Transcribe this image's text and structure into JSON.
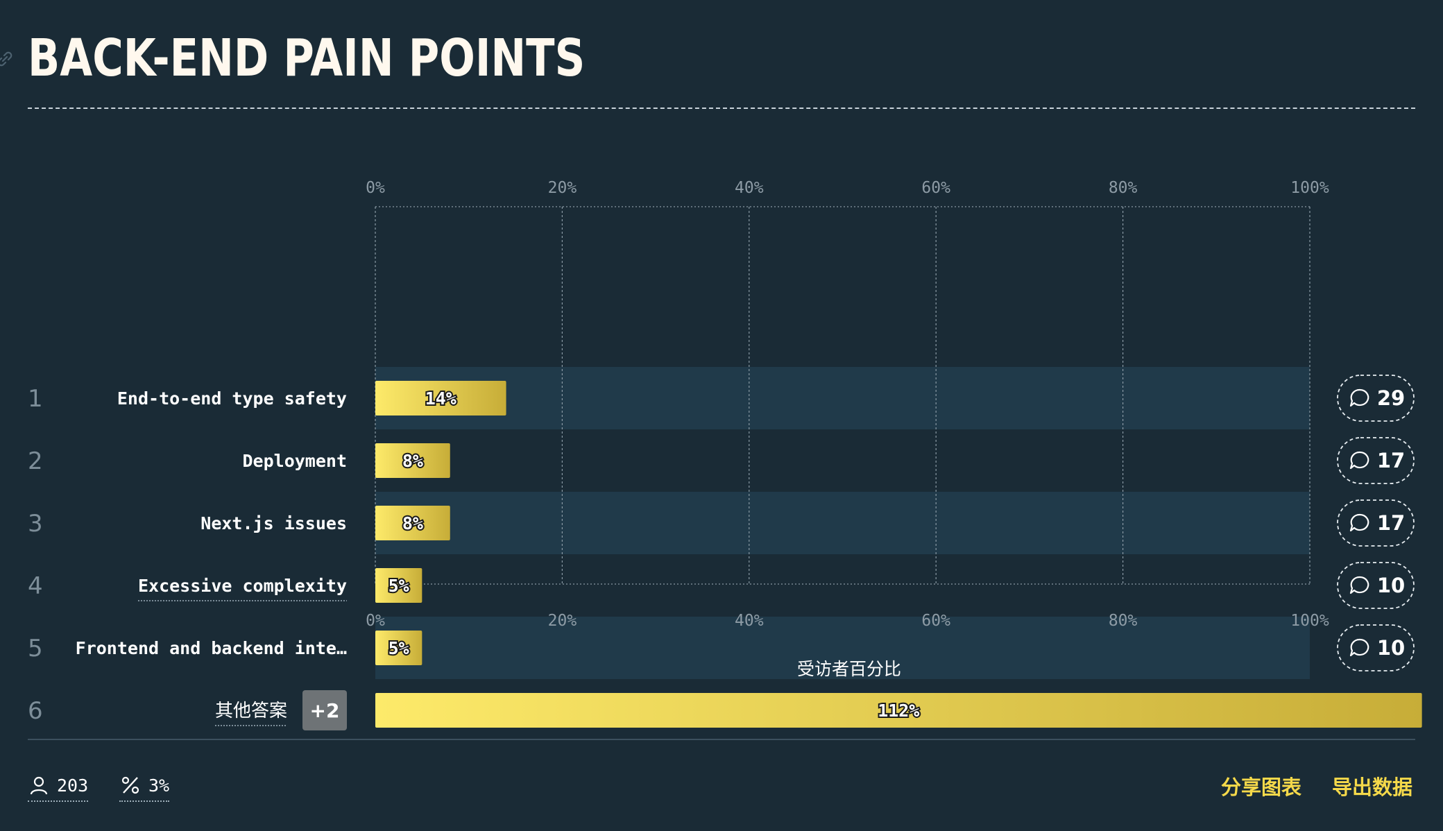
{
  "page": {
    "title": "BACK-END PAIN POINTS"
  },
  "chart_data": {
    "type": "bar",
    "orientation": "horizontal",
    "xlabel": "受访者百分比",
    "xlim": [
      0,
      100
    ],
    "xticks": [
      "0%",
      "20%",
      "40%",
      "60%",
      "80%",
      "100%"
    ],
    "grid": true,
    "rows": [
      {
        "rank": "1",
        "label": "End-to-end type safety",
        "value": 14,
        "value_label": "14%",
        "comments": "29",
        "underlined": false
      },
      {
        "rank": "2",
        "label": "Deployment",
        "value": 8,
        "value_label": "8%",
        "comments": "17",
        "underlined": false
      },
      {
        "rank": "3",
        "label": "Next.js issues",
        "value": 8,
        "value_label": "8%",
        "comments": "17",
        "underlined": false
      },
      {
        "rank": "4",
        "label": "Excessive complexity",
        "value": 5,
        "value_label": "5%",
        "comments": "10",
        "underlined": true
      },
      {
        "rank": "5",
        "label": "Frontend and backend inte…",
        "value": 5,
        "value_label": "5%",
        "comments": "10",
        "underlined": false
      },
      {
        "rank": "6",
        "label": "其他答案",
        "value": 112,
        "value_label": "112%",
        "comments": "",
        "underlined": true,
        "badge": "+2"
      }
    ]
  },
  "footer": {
    "respondents": "203",
    "percent": "3%",
    "share_label": "分享图表",
    "export_label": "导出数据"
  },
  "colors": {
    "background": "#1a2b36",
    "row_band": "#203a4a",
    "bar_start": "#fdea6a",
    "bar_end": "#c7ad38",
    "accent": "#f5d94a"
  },
  "icons": {
    "respondents": "person-icon",
    "percent": "percent-icon",
    "comments": "comment-bubble-icon",
    "link": "link-icon"
  }
}
